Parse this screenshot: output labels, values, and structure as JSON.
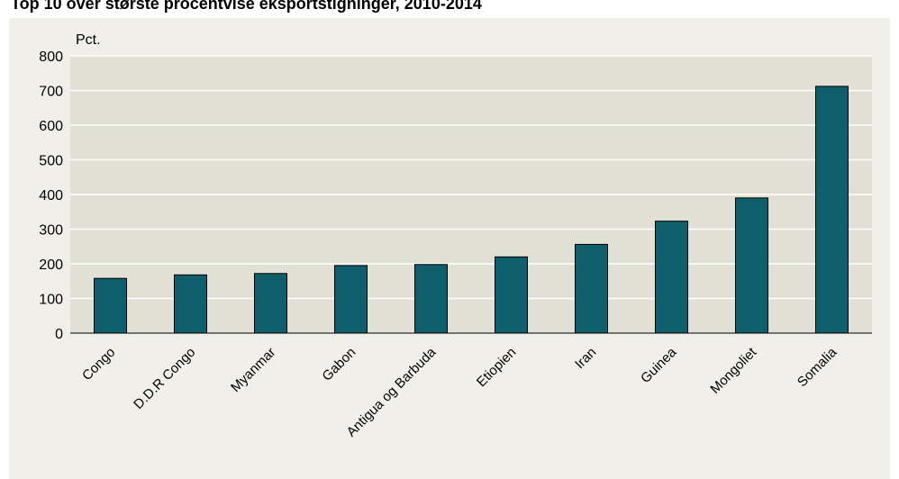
{
  "chart_data": {
    "type": "bar",
    "title": "Top 10 over største procentvise eksportstigninger, 2010-2014",
    "ylabel": "Pct.",
    "xlabel": "",
    "ylim": [
      0,
      800
    ],
    "yticks": [
      0,
      100,
      200,
      300,
      400,
      500,
      600,
      700,
      800
    ],
    "grid": true,
    "categories": [
      "Congo",
      "D.D.R Congo",
      "Myanmar",
      "Gabon",
      "Antigua og Barbuda",
      "Etiopien",
      "Iran",
      "Guinea",
      "Mongoliet",
      "Somalia"
    ],
    "values": [
      158,
      168,
      172,
      195,
      198,
      220,
      256,
      323,
      390,
      712
    ],
    "colors": {
      "bar": "#0e5f6b",
      "plot_background": "#e1e0d5",
      "outer_background": "#f0efe9",
      "gridline": "#ffffff"
    }
  }
}
